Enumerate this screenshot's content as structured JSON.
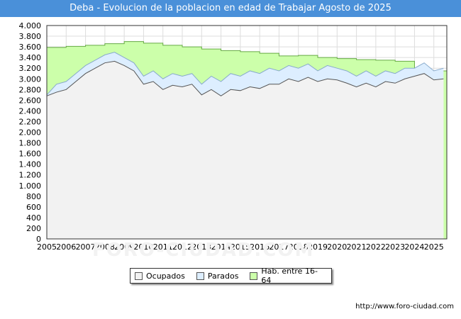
{
  "header": {
    "title": "Deba - Evolucion de la poblacion en edad de Trabajar Agosto de 2025"
  },
  "footer": {
    "source": "http://www.foro-ciudad.com"
  },
  "watermark": "FORO-CIUDAD.COM",
  "colors": {
    "title_bg": "#4a90d9",
    "ocupados_fill": "#f2f2f2",
    "ocupados_line": "#555555",
    "parados_fill": "#ddeeff",
    "parados_line": "#88aacc",
    "hab_fill": "#ccffaa",
    "hab_line": "#66aa44",
    "grid": "#dddddd"
  },
  "chart_data": {
    "type": "area",
    "title": "Deba - Evolucion de la poblacion en edad de Trabajar Agosto de 2025",
    "ylim": [
      0,
      4000
    ],
    "yticks": [
      0,
      200,
      400,
      600,
      800,
      1000,
      1200,
      1400,
      1600,
      1800,
      2000,
      2200,
      2400,
      2600,
      2800,
      3000,
      3200,
      3400,
      3600,
      3800,
      4000
    ],
    "ytick_labels": [
      "0",
      "200",
      "400",
      "600",
      "800",
      "1.000",
      "1.200",
      "1.400",
      "1.600",
      "1.800",
      "2.000",
      "2.200",
      "2.400",
      "2.600",
      "2.800",
      "3.000",
      "3.200",
      "3.400",
      "3.600",
      "3.800",
      "4.000"
    ],
    "xlim": [
      2005,
      2025.67
    ],
    "xticks": [
      2005,
      2006,
      2007,
      2008,
      2009,
      2010,
      2011,
      2012,
      2013,
      2014,
      2015,
      2016,
      2017,
      2018,
      2019,
      2020,
      2021,
      2022,
      2023,
      2024,
      2025
    ],
    "grid": true,
    "legend_position": "bottom",
    "series": [
      {
        "name": "Hab. entre 16-64",
        "x": [
          2005,
          2006,
          2007,
          2008,
          2009,
          2010,
          2011,
          2012,
          2013,
          2014,
          2015,
          2016,
          2017,
          2018,
          2019,
          2020,
          2021,
          2022,
          2023,
          2024,
          2025
        ],
        "values": [
          3590,
          3610,
          3630,
          3660,
          3700,
          3670,
          3630,
          3600,
          3560,
          3530,
          3510,
          3480,
          3430,
          3440,
          3400,
          3380,
          3360,
          3350,
          3330,
          3130,
          3150
        ]
      },
      {
        "name": "Parados",
        "x": [
          2005,
          2005.5,
          2006,
          2006.5,
          2007,
          2007.5,
          2008,
          2008.5,
          2009,
          2009.5,
          2010,
          2010.5,
          2011,
          2011.5,
          2012,
          2012.5,
          2013,
          2013.5,
          2014,
          2014.5,
          2015,
          2015.5,
          2016,
          2016.5,
          2017,
          2017.5,
          2018,
          2018.5,
          2019,
          2019.5,
          2020,
          2020.5,
          2021,
          2021.5,
          2022,
          2022.5,
          2023,
          2023.5,
          2024,
          2024.5,
          2025,
          2025.5
        ],
        "values": [
          2700,
          2900,
          2950,
          3100,
          3250,
          3350,
          3450,
          3500,
          3400,
          3300,
          3050,
          3150,
          3000,
          3100,
          3050,
          3100,
          2900,
          3050,
          2950,
          3100,
          3050,
          3150,
          3100,
          3200,
          3150,
          3250,
          3200,
          3280,
          3150,
          3250,
          3200,
          3150,
          3050,
          3150,
          3050,
          3150,
          3100,
          3200,
          3200,
          3300,
          3150,
          3200
        ]
      },
      {
        "name": "Ocupados",
        "x": [
          2005,
          2005.5,
          2006,
          2006.5,
          2007,
          2007.5,
          2008,
          2008.5,
          2009,
          2009.5,
          2010,
          2010.5,
          2011,
          2011.5,
          2012,
          2012.5,
          2013,
          2013.5,
          2014,
          2014.5,
          2015,
          2015.5,
          2016,
          2016.5,
          2017,
          2017.5,
          2018,
          2018.5,
          2019,
          2019.5,
          2020,
          2020.5,
          2021,
          2021.5,
          2022,
          2022.5,
          2023,
          2023.5,
          2024,
          2024.5,
          2025,
          2025.5
        ],
        "values": [
          2680,
          2750,
          2800,
          2950,
          3100,
          3200,
          3300,
          3330,
          3250,
          3150,
          2900,
          2950,
          2800,
          2880,
          2850,
          2900,
          2700,
          2800,
          2680,
          2800,
          2780,
          2850,
          2820,
          2900,
          2900,
          3000,
          2950,
          3030,
          2950,
          3000,
          2980,
          2920,
          2850,
          2920,
          2850,
          2950,
          2920,
          3000,
          3050,
          3100,
          2980,
          3000
        ]
      }
    ]
  }
}
